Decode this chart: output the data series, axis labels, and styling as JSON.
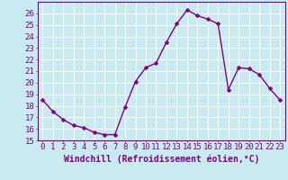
{
  "x": [
    0,
    1,
    2,
    3,
    4,
    5,
    6,
    7,
    8,
    9,
    10,
    11,
    12,
    13,
    14,
    15,
    16,
    17,
    18,
    19,
    20,
    21,
    22,
    23
  ],
  "y": [
    18.5,
    17.5,
    16.8,
    16.3,
    16.1,
    15.7,
    15.5,
    15.5,
    17.9,
    20.1,
    21.3,
    21.7,
    23.5,
    25.1,
    26.3,
    25.8,
    25.5,
    25.1,
    19.4,
    21.3,
    21.2,
    20.7,
    19.5,
    18.5
  ],
  "line_color": "#800080",
  "marker": "D",
  "markersize": 2.5,
  "linewidth": 1.0,
  "bg_color": "#c8eaf0",
  "grid_color": "#ffffff",
  "xlabel": "Windchill (Refroidissement éolien,°C)",
  "ylabel": "",
  "ylim": [
    15,
    27
  ],
  "xlim": [
    -0.5,
    23.5
  ],
  "yticks": [
    15,
    16,
    17,
    18,
    19,
    20,
    21,
    22,
    23,
    24,
    25,
    26
  ],
  "xticks": [
    0,
    1,
    2,
    3,
    4,
    5,
    6,
    7,
    8,
    9,
    10,
    11,
    12,
    13,
    14,
    15,
    16,
    17,
    18,
    19,
    20,
    21,
    22,
    23
  ],
  "xlabel_fontsize": 7.0,
  "tick_fontsize": 6.5,
  "spine_color": "#800080",
  "tick_color": "#800080"
}
